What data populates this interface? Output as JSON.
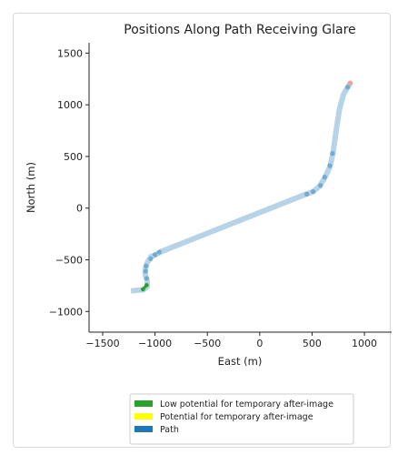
{
  "chart_data": {
    "type": "line",
    "title": "Positions Along Path Receiving Glare",
    "xlabel": "East (m)",
    "ylabel": "North (m)",
    "xlim": [
      -1630,
      1260
    ],
    "ylim": [
      -1200,
      1600
    ],
    "xticks": [
      -1500,
      -1000,
      -500,
      0,
      500,
      1000
    ],
    "yticks": [
      -1000,
      -500,
      0,
      500,
      1000,
      1500
    ],
    "tick_labels_x": [
      "−1500",
      "−1000",
      "−500",
      "0",
      "500",
      "1000"
    ],
    "tick_labels_y": [
      "−1000",
      "−500",
      "0",
      "500",
      "1000",
      "1500"
    ],
    "grid": false,
    "series": [
      {
        "name": "Path",
        "color": "#1f77b4",
        "x": [
          -1230,
          -1110,
          -1075,
          -1075,
          -1095,
          -1090,
          -1070,
          -1040,
          -990,
          -940,
          430,
          510,
          570,
          620,
          670,
          700,
          730,
          760,
          800,
          840,
          865
        ],
        "y": [
          -800,
          -790,
          -760,
          -700,
          -640,
          -570,
          -520,
          -470,
          -450,
          -420,
          130,
          160,
          210,
          290,
          400,
          530,
          750,
          950,
          1100,
          1170,
          1210
        ]
      },
      {
        "name": "Low potential for temporary after-image",
        "color": "#2ca02c",
        "x": [
          -1115,
          -1080
        ],
        "y": [
          -785,
          -745
        ]
      }
    ],
    "glare_points": [
      {
        "x": -1080,
        "y": -680
      },
      {
        "x": -1090,
        "y": -610
      },
      {
        "x": -1085,
        "y": -560
      },
      {
        "x": -1040,
        "y": -490
      },
      {
        "x": -1000,
        "y": -450
      },
      {
        "x": -960,
        "y": -425
      },
      {
        "x": 450,
        "y": 135
      },
      {
        "x": 510,
        "y": 160
      },
      {
        "x": 580,
        "y": 220
      },
      {
        "x": 620,
        "y": 300
      },
      {
        "x": 670,
        "y": 410
      },
      {
        "x": 695,
        "y": 530
      },
      {
        "x": 840,
        "y": 1170
      }
    ],
    "legend": {
      "placement": "bottom-center",
      "entries": [
        {
          "label": "Low potential for temporary after-image",
          "color": "#2ca02c"
        },
        {
          "label": "Potential for temporary after-image",
          "color": "#ffff00"
        },
        {
          "label": "Path",
          "color": "#1f77b4"
        }
      ]
    },
    "end_marker_color": "#f4a0a0"
  }
}
